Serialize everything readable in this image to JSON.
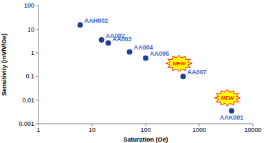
{
  "chart_data": {
    "type": "scatter",
    "labels": [
      "AAH002",
      "AA002",
      "AA003",
      "AA004",
      "AA005",
      "AA007",
      "AAK001"
    ],
    "x": [
      6,
      15,
      20,
      50,
      100,
      500,
      4000
    ],
    "values": [
      15,
      3.5,
      2.6,
      1.1,
      0.6,
      0.1,
      0.0035
    ],
    "color": "#1f3c99",
    "xlabel": "Saturation (Oe)",
    "ylabel": "Sensitivity (mV/V/Oe)",
    "log": true,
    "xlim": [
      1,
      10000
    ],
    "ylim": [
      0.001,
      100
    ],
    "xticks": [
      1,
      10,
      100,
      1000,
      10000
    ],
    "yticks": [
      0.001,
      0.01,
      0.1,
      1,
      10,
      100
    ],
    "grid": false,
    "marker": "circle",
    "annotations": [
      {
        "text": "NEW",
        "label": "AA007"
      },
      {
        "text": "NEW",
        "label": "AAK001"
      }
    ]
  }
}
